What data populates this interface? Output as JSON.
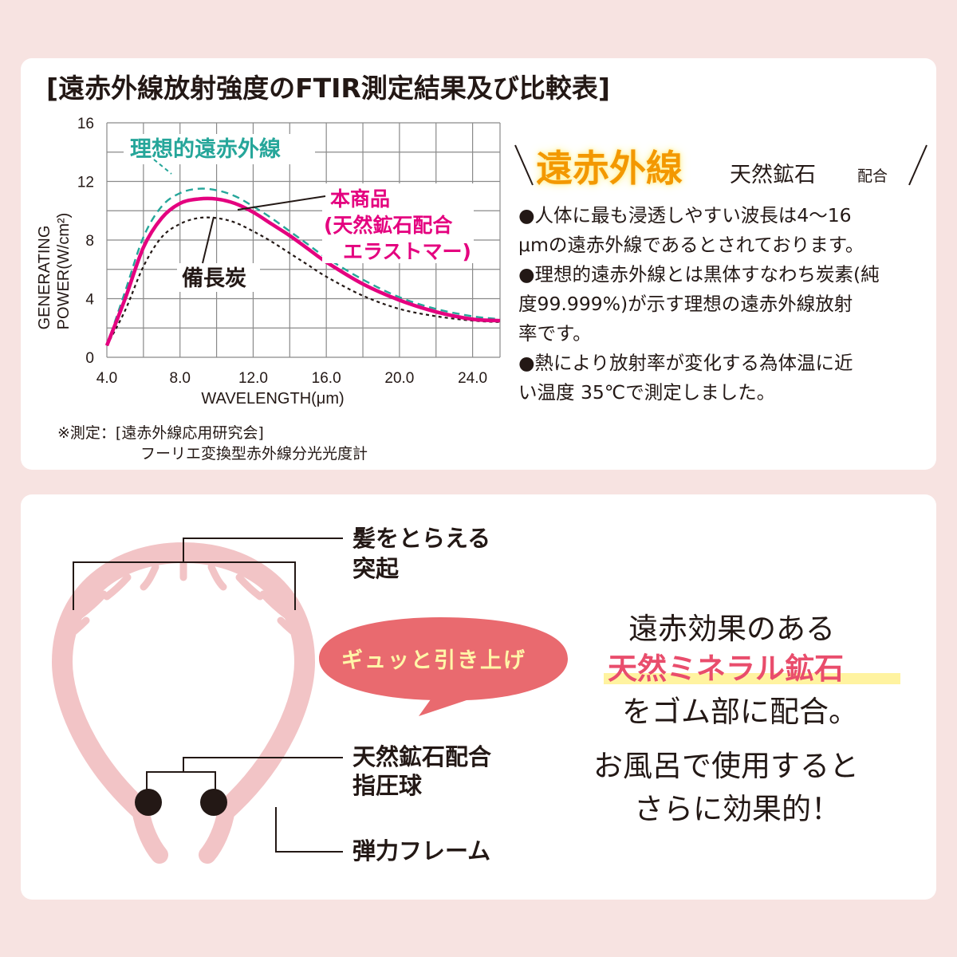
{
  "chart_card": {
    "title": "[遠赤外線放射強度のFTIR測定結果及び比較表]",
    "note_line1": "※測定：[遠赤外線応用研究会]",
    "note_line2": "フーリエ変換型赤外線分光光度計"
  },
  "chart_data": {
    "type": "line",
    "xlabel": "WAVELENGTH(μm)",
    "ylabel_line1": "GENERATING",
    "ylabel_line2": "POWER(W/cm²)",
    "xlim": [
      4,
      25.5
    ],
    "ylim": [
      0,
      16
    ],
    "xticks": [
      "4.0",
      "8.0",
      "12.0",
      "16.0",
      "20.0",
      "24.0"
    ],
    "yticks": [
      "0",
      "4",
      "8",
      "12",
      "16"
    ],
    "grid": true,
    "series": [
      {
        "name": "理想的遠赤外線",
        "color": "#26a69a",
        "style": "dashed",
        "x": [
          4,
          5,
          6,
          7,
          8,
          9,
          10,
          11,
          12,
          13,
          14,
          15,
          16,
          18,
          20,
          22,
          24,
          25.5
        ],
        "y": [
          0.8,
          4.5,
          8.2,
          10.3,
          11.2,
          11.5,
          11.4,
          11.0,
          10.3,
          9.5,
          8.6,
          7.7,
          6.8,
          5.3,
          4.1,
          3.3,
          2.8,
          2.6
        ]
      },
      {
        "name": "本商品（天然鉱石配合エラストマー）",
        "color": "#e4007f",
        "style": "solid",
        "x": [
          4,
          5,
          6,
          7,
          8,
          9,
          10,
          11,
          12,
          13,
          14,
          15,
          16,
          18,
          20,
          22,
          24,
          25.5
        ],
        "y": [
          0.8,
          4.0,
          7.5,
          9.5,
          10.5,
          10.8,
          10.8,
          10.5,
          9.9,
          9.1,
          8.3,
          7.4,
          6.5,
          5.0,
          3.9,
          3.1,
          2.6,
          2.5
        ]
      },
      {
        "name": "備長炭",
        "color": "#231815",
        "style": "dotted",
        "x": [
          4,
          5,
          6,
          7,
          8,
          9,
          10,
          11,
          12,
          13,
          14,
          15,
          16,
          18,
          20,
          22,
          24,
          25.5
        ],
        "y": [
          0.8,
          3.2,
          6.2,
          8.2,
          9.1,
          9.5,
          9.5,
          9.2,
          8.6,
          7.9,
          7.1,
          6.3,
          5.5,
          4.2,
          3.3,
          2.8,
          2.5,
          2.4
        ]
      }
    ],
    "annotations": {
      "ideal": "理想的遠赤外線",
      "product_line1": "本商品",
      "product_line2": "(天然鉱石配合",
      "product_line3": "エラストマー)",
      "charcoal": "備長炭"
    }
  },
  "side_panel": {
    "heading": "遠赤外線",
    "sub": "天然鉱石",
    "sub_small": "配合",
    "bullets": [
      "●人体に最も浸透しやすい波長は4～16",
      "μmの遠赤外線であるとされております。",
      "●理想的遠赤外線とは黒体すなわち炭素(純",
      "度99.999%)が示す理想の遠赤外線放射",
      "率です。",
      "●熱により放射率が変化する為体温に近",
      "い温度 35℃で測定しました。"
    ]
  },
  "product_card": {
    "label_protrusion_1": "髪をとらえる",
    "label_protrusion_2": "突起",
    "label_ball_1": "天然鉱石配合",
    "label_ball_2": "指圧球",
    "label_frame": "弾力フレーム",
    "bubble": "ギュッと引き上げ",
    "copy_line1": "遠赤効果のある",
    "copy_line2": "天然ミネラル鉱石",
    "copy_line3": "をゴム部に配合。",
    "copy_line4": "お風呂で使用すると",
    "copy_line5": "さらに効果的！",
    "colors": {
      "frame": "#f2c4c6",
      "bubble": "#e96a6f",
      "ball": "#231815",
      "highlight": "#fff3a0",
      "accent": "#e94d6c"
    }
  }
}
